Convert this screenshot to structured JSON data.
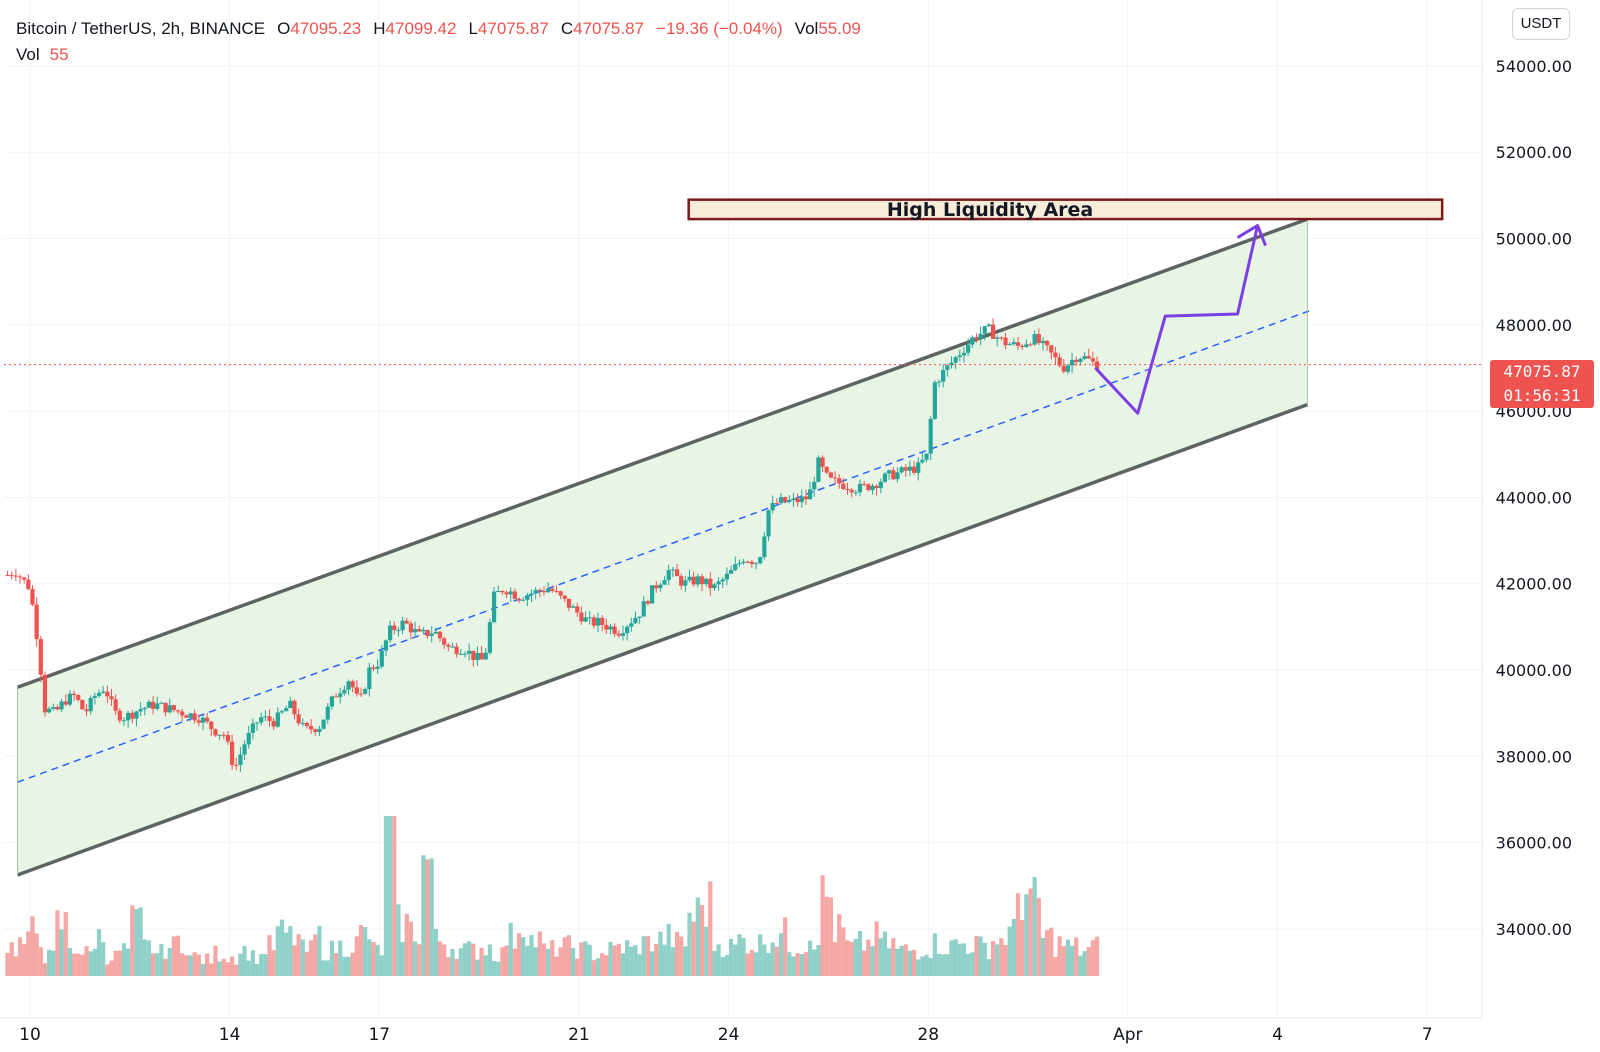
{
  "legend": {
    "symbol": "Bitcoin / TetherUS, 2h, BINANCE",
    "open_label": "O",
    "open": "47095.23",
    "high_label": "H",
    "high": "47099.42",
    "low_label": "L",
    "low": "47075.87",
    "close_label": "C",
    "close": "47075.87",
    "change": "−19.36 (−0.04%)",
    "vol_label": "Vol",
    "vol": "55.09",
    "vol_row_label": "Vol",
    "vol_row_value": "55"
  },
  "currency_button": "USDT",
  "price_tag": {
    "price": "47075.87",
    "countdown": "01:56:31"
  },
  "colors": {
    "up": "#26a69a",
    "down": "#ef5350",
    "vol_up": "#8fd1c9",
    "vol_down": "#f4a7a4",
    "channel_fill": "#e4f3e2",
    "channel_line": "#5d6360",
    "midline": "#2962ff",
    "projection": "#7b3fe4",
    "zone_fill": "#f6ecd9",
    "zone_border": "#7a1a1a",
    "grid": "#f0f3fa",
    "current_price_line": "#ef5350"
  },
  "chart_data": {
    "type": "candlestick",
    "y_axis": {
      "unit": "USDT",
      "ylim": [
        32800,
        55200
      ],
      "ticks": [
        34000,
        36000,
        38000,
        40000,
        42000,
        44000,
        46000,
        48000,
        50000,
        52000,
        54000
      ],
      "position": "right"
    },
    "x_axis": {
      "unit": "day",
      "xlim": [
        9.5,
        38.3
      ],
      "ticks": [
        {
          "day": 10,
          "label": "10"
        },
        {
          "day": 14,
          "label": "14"
        },
        {
          "day": 17,
          "label": "17"
        },
        {
          "day": 21,
          "label": "21"
        },
        {
          "day": 24,
          "label": "24"
        },
        {
          "day": 28,
          "label": "28"
        },
        {
          "day": 32,
          "label": "Apr"
        },
        {
          "day": 35,
          "label": "4"
        },
        {
          "day": 38,
          "label": "7"
        }
      ]
    },
    "grid": true,
    "current_price": 47075.87,
    "price_path_close": [
      [
        9.55,
        42200
      ],
      [
        9.7,
        42300
      ],
      [
        9.85,
        42100
      ],
      [
        10.0,
        41900
      ],
      [
        10.15,
        40700
      ],
      [
        10.3,
        39100
      ],
      [
        10.5,
        39000
      ],
      [
        10.7,
        39300
      ],
      [
        10.9,
        39400
      ],
      [
        11.1,
        39000
      ],
      [
        11.3,
        39400
      ],
      [
        11.5,
        39600
      ],
      [
        11.7,
        39000
      ],
      [
        11.9,
        38900
      ],
      [
        12.2,
        39100
      ],
      [
        12.5,
        39200
      ],
      [
        12.8,
        39100
      ],
      [
        13.1,
        39000
      ],
      [
        13.4,
        38900
      ],
      [
        13.7,
        38600
      ],
      [
        13.9,
        38500
      ],
      [
        14.1,
        37700
      ],
      [
        14.3,
        38300
      ],
      [
        14.6,
        38900
      ],
      [
        14.9,
        38800
      ],
      [
        15.2,
        39200
      ],
      [
        15.5,
        38600
      ],
      [
        15.8,
        38700
      ],
      [
        16.1,
        39400
      ],
      [
        16.4,
        39800
      ],
      [
        16.6,
        39200
      ],
      [
        16.8,
        40000
      ],
      [
        17.0,
        40200
      ],
      [
        17.2,
        40900
      ],
      [
        17.5,
        41100
      ],
      [
        17.8,
        40800
      ],
      [
        18.1,
        40900
      ],
      [
        18.4,
        40500
      ],
      [
        18.7,
        40500
      ],
      [
        18.9,
        40300
      ],
      [
        19.1,
        40200
      ],
      [
        19.3,
        41700
      ],
      [
        19.5,
        41900
      ],
      [
        19.8,
        41700
      ],
      [
        20.1,
        41800
      ],
      [
        20.4,
        41900
      ],
      [
        20.7,
        41600
      ],
      [
        21.0,
        41300
      ],
      [
        21.2,
        41100
      ],
      [
        21.4,
        41100
      ],
      [
        21.6,
        41000
      ],
      [
        21.8,
        40900
      ],
      [
        22.0,
        41100
      ],
      [
        22.2,
        41300
      ],
      [
        22.5,
        41900
      ],
      [
        22.8,
        42300
      ],
      [
        23.1,
        42000
      ],
      [
        23.4,
        42100
      ],
      [
        23.7,
        41900
      ],
      [
        24.0,
        42200
      ],
      [
        24.3,
        42600
      ],
      [
        24.6,
        42500
      ],
      [
        24.8,
        43700
      ],
      [
        25.0,
        43900
      ],
      [
        25.3,
        43900
      ],
      [
        25.6,
        44000
      ],
      [
        25.8,
        44800
      ],
      [
        26.0,
        44400
      ],
      [
        26.3,
        44300
      ],
      [
        26.6,
        44200
      ],
      [
        26.9,
        44300
      ],
      [
        27.2,
        44500
      ],
      [
        27.5,
        44600
      ],
      [
        27.8,
        44700
      ],
      [
        28.0,
        45000
      ],
      [
        28.1,
        46600
      ],
      [
        28.3,
        46900
      ],
      [
        28.6,
        47300
      ],
      [
        28.9,
        47700
      ],
      [
        29.2,
        47900
      ],
      [
        29.5,
        47600
      ],
      [
        29.8,
        47500
      ],
      [
        30.1,
        47700
      ],
      [
        30.4,
        47400
      ],
      [
        30.7,
        47000
      ],
      [
        31.0,
        47300
      ],
      [
        31.2,
        47200
      ],
      [
        31.35,
        47076
      ]
    ],
    "volume_relative": [
      0.9,
      1.0,
      1.4,
      0.6,
      1.6,
      0.9,
      0.7,
      1.2,
      0.6,
      0.8,
      1.6,
      0.9,
      0.7,
      0.9,
      1.1,
      0.6,
      0.5,
      0.7,
      0.6,
      0.8,
      0.6,
      0.9,
      1.3,
      1.2,
      0.8,
      1.2,
      0.8,
      0.9,
      1.0,
      1.3,
      0.8,
      5.4,
      1.6,
      1.4,
      3.5,
      1.1,
      0.9,
      0.8,
      0.8,
      0.9,
      0.7,
      1.2,
      1.6,
      1.1,
      0.8,
      0.9,
      0.9,
      0.8,
      0.7,
      0.8,
      0.9,
      0.8,
      1.0,
      1.1,
      1.2,
      1.0,
      1.9,
      2.2,
      1.0,
      0.9,
      1.1,
      1.0,
      1.2,
      1.3,
      0.9,
      1.0,
      1.3,
      2.4,
      1.4,
      0.9,
      1.0,
      1.2,
      1.0,
      0.8,
      0.8,
      0.9,
      1.0,
      0.9,
      1.0,
      1.0,
      0.9,
      1.1,
      1.3,
      2.6,
      2.2,
      1.2,
      1.0,
      0.9,
      0.8,
      0.9
    ],
    "drawings": {
      "channel_upper": [
        [
          9.75,
          39600
        ],
        [
          35.6,
          50450
        ]
      ],
      "channel_lower": [
        [
          9.75,
          35250
        ],
        [
          35.6,
          46150
        ]
      ],
      "channel_mid": [
        [
          9.75,
          37400
        ],
        [
          35.7,
          48350
        ]
      ],
      "projection_path": [
        [
          31.35,
          47000
        ],
        [
          32.2,
          45950
        ],
        [
          32.75,
          48200
        ],
        [
          34.2,
          48250
        ],
        [
          34.6,
          50300
        ]
      ],
      "high_liquidity_zone": {
        "label": "High Liquidity Area",
        "x_start": 23.2,
        "x_end": 38.3,
        "y_low": 50450,
        "y_high": 50900
      }
    }
  }
}
